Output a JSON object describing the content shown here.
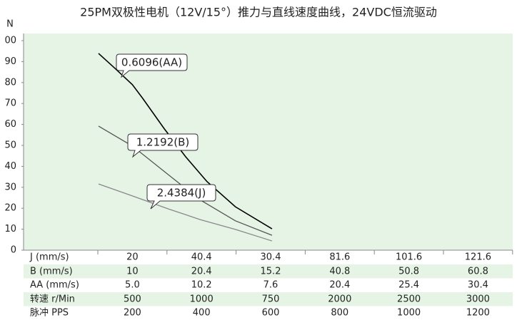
{
  "chart_data": {
    "type": "line",
    "title": "25PM双极性电机（12V/15°）推力与直线速度曲线，24VDC恒流驱动",
    "ylabel": "N",
    "xlim": [
      0,
      6
    ],
    "ylim": [
      0,
      100
    ],
    "yticks": [
      0,
      10,
      20,
      30,
      40,
      50,
      60,
      70,
      80,
      90,
      {
        "value": 100,
        "label": "00"
      }
    ],
    "background": "#e6f4e6",
    "series": [
      {
        "name": "0.6096(AA)",
        "color": "#000000",
        "x": [
          0.01,
          0.24,
          0.5,
          0.65,
          0.96,
          1.27,
          1.58,
          1.99,
          2.52
        ],
        "values": [
          93.9,
          87,
          79,
          72.4,
          58,
          44.6,
          32.7,
          20.7,
          10.2
        ]
      },
      {
        "name": "1.2192(B)",
        "color": "#555555",
        "x": [
          0.01,
          0.5,
          1.02,
          1.48,
          1.99,
          2.52
        ],
        "values": [
          59.2,
          49.7,
          36,
          24,
          14,
          7.1
        ]
      },
      {
        "name": "2.4384(J)",
        "color": "#888888",
        "x": [
          0.01,
          0.5,
          1.02,
          1.48,
          1.99,
          2.52
        ],
        "values": [
          31.6,
          25.9,
          19.7,
          14.6,
          9.9,
          4.4
        ]
      }
    ]
  },
  "table": {
    "rows": [
      [
        "J (mm/s)",
        "20",
        "40.4",
        "30.4",
        "81.6",
        "101.6",
        "121.6"
      ],
      [
        "B (mm/s)",
        "10",
        "20.4",
        "15.2",
        "40.8",
        "50.8",
        "60.8"
      ],
      [
        "AA (mm/s)",
        "5.0",
        "10.2",
        "7.6",
        "20.4",
        "25.4",
        "30.4"
      ],
      [
        "转速 r/Min",
        "500",
        "1000",
        "750",
        "2000",
        "2500",
        "3000"
      ],
      [
        "脉冲 PPS",
        "200",
        "400",
        "600",
        "800",
        "1000",
        "1200"
      ]
    ]
  }
}
